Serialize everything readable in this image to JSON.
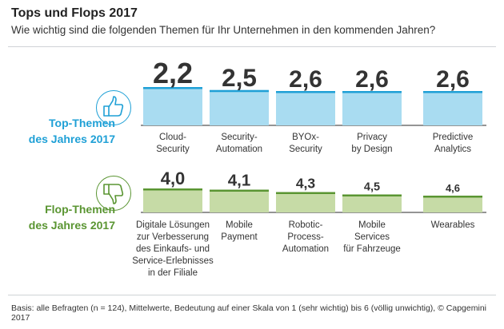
{
  "title": "Tops und Flops 2017",
  "subtitle": "Wie wichtig sind die folgenden Themen für Ihr Unternehmen in den kommenden Jahren?",
  "footnote": "Basis: alle Befragten (n = 124), Mittelwerte, Bedeutung auf einer Skala von 1 (sehr wichtig) bis 6 (völlig unwichtig), © Capgemini 2017",
  "colors": {
    "top_accent": "#1fa0d6",
    "top_fill": "#a9dcf1",
    "flop_accent": "#5a9532",
    "flop_fill": "#c6dba6",
    "axis": "#555555"
  },
  "groups": {
    "top": {
      "label": "Top-Themen\ndes Jahres 2017",
      "icon": "thumbs-up-icon"
    },
    "flop": {
      "label": "Flop-Themen\ndes Jahres 2017",
      "icon": "thumbs-down-icon"
    }
  },
  "chart_data": [
    {
      "type": "bar",
      "group": "top",
      "categories": [
        "Cloud-\nSecurity",
        "Security-\nAutomation",
        "BYOx-\nSecurity",
        "Privacy\nby Design",
        "Predictive\nAnalytics"
      ],
      "values": [
        2.2,
        2.5,
        2.6,
        2.6,
        2.6
      ],
      "value_labels": [
        "2,2",
        "2,5",
        "2,6",
        "2,6",
        "2,6"
      ],
      "scale": [
        1,
        6
      ]
    },
    {
      "type": "bar",
      "group": "flop",
      "categories": [
        "Digitale Lösungen\nzur Verbesserung\ndes Einkaufs- und\nService-Erlebnisses\nin der Filiale",
        "Mobile\nPayment",
        "Robotic-\nProcess-\nAutomation",
        "Mobile\nServices\nfür Fahrzeuge",
        "Wearables"
      ],
      "values": [
        4.0,
        4.1,
        4.3,
        4.5,
        4.6
      ],
      "value_labels": [
        "4,0",
        "4,1",
        "4,3",
        "4,5",
        "4,6"
      ],
      "scale": [
        1,
        6
      ]
    }
  ]
}
